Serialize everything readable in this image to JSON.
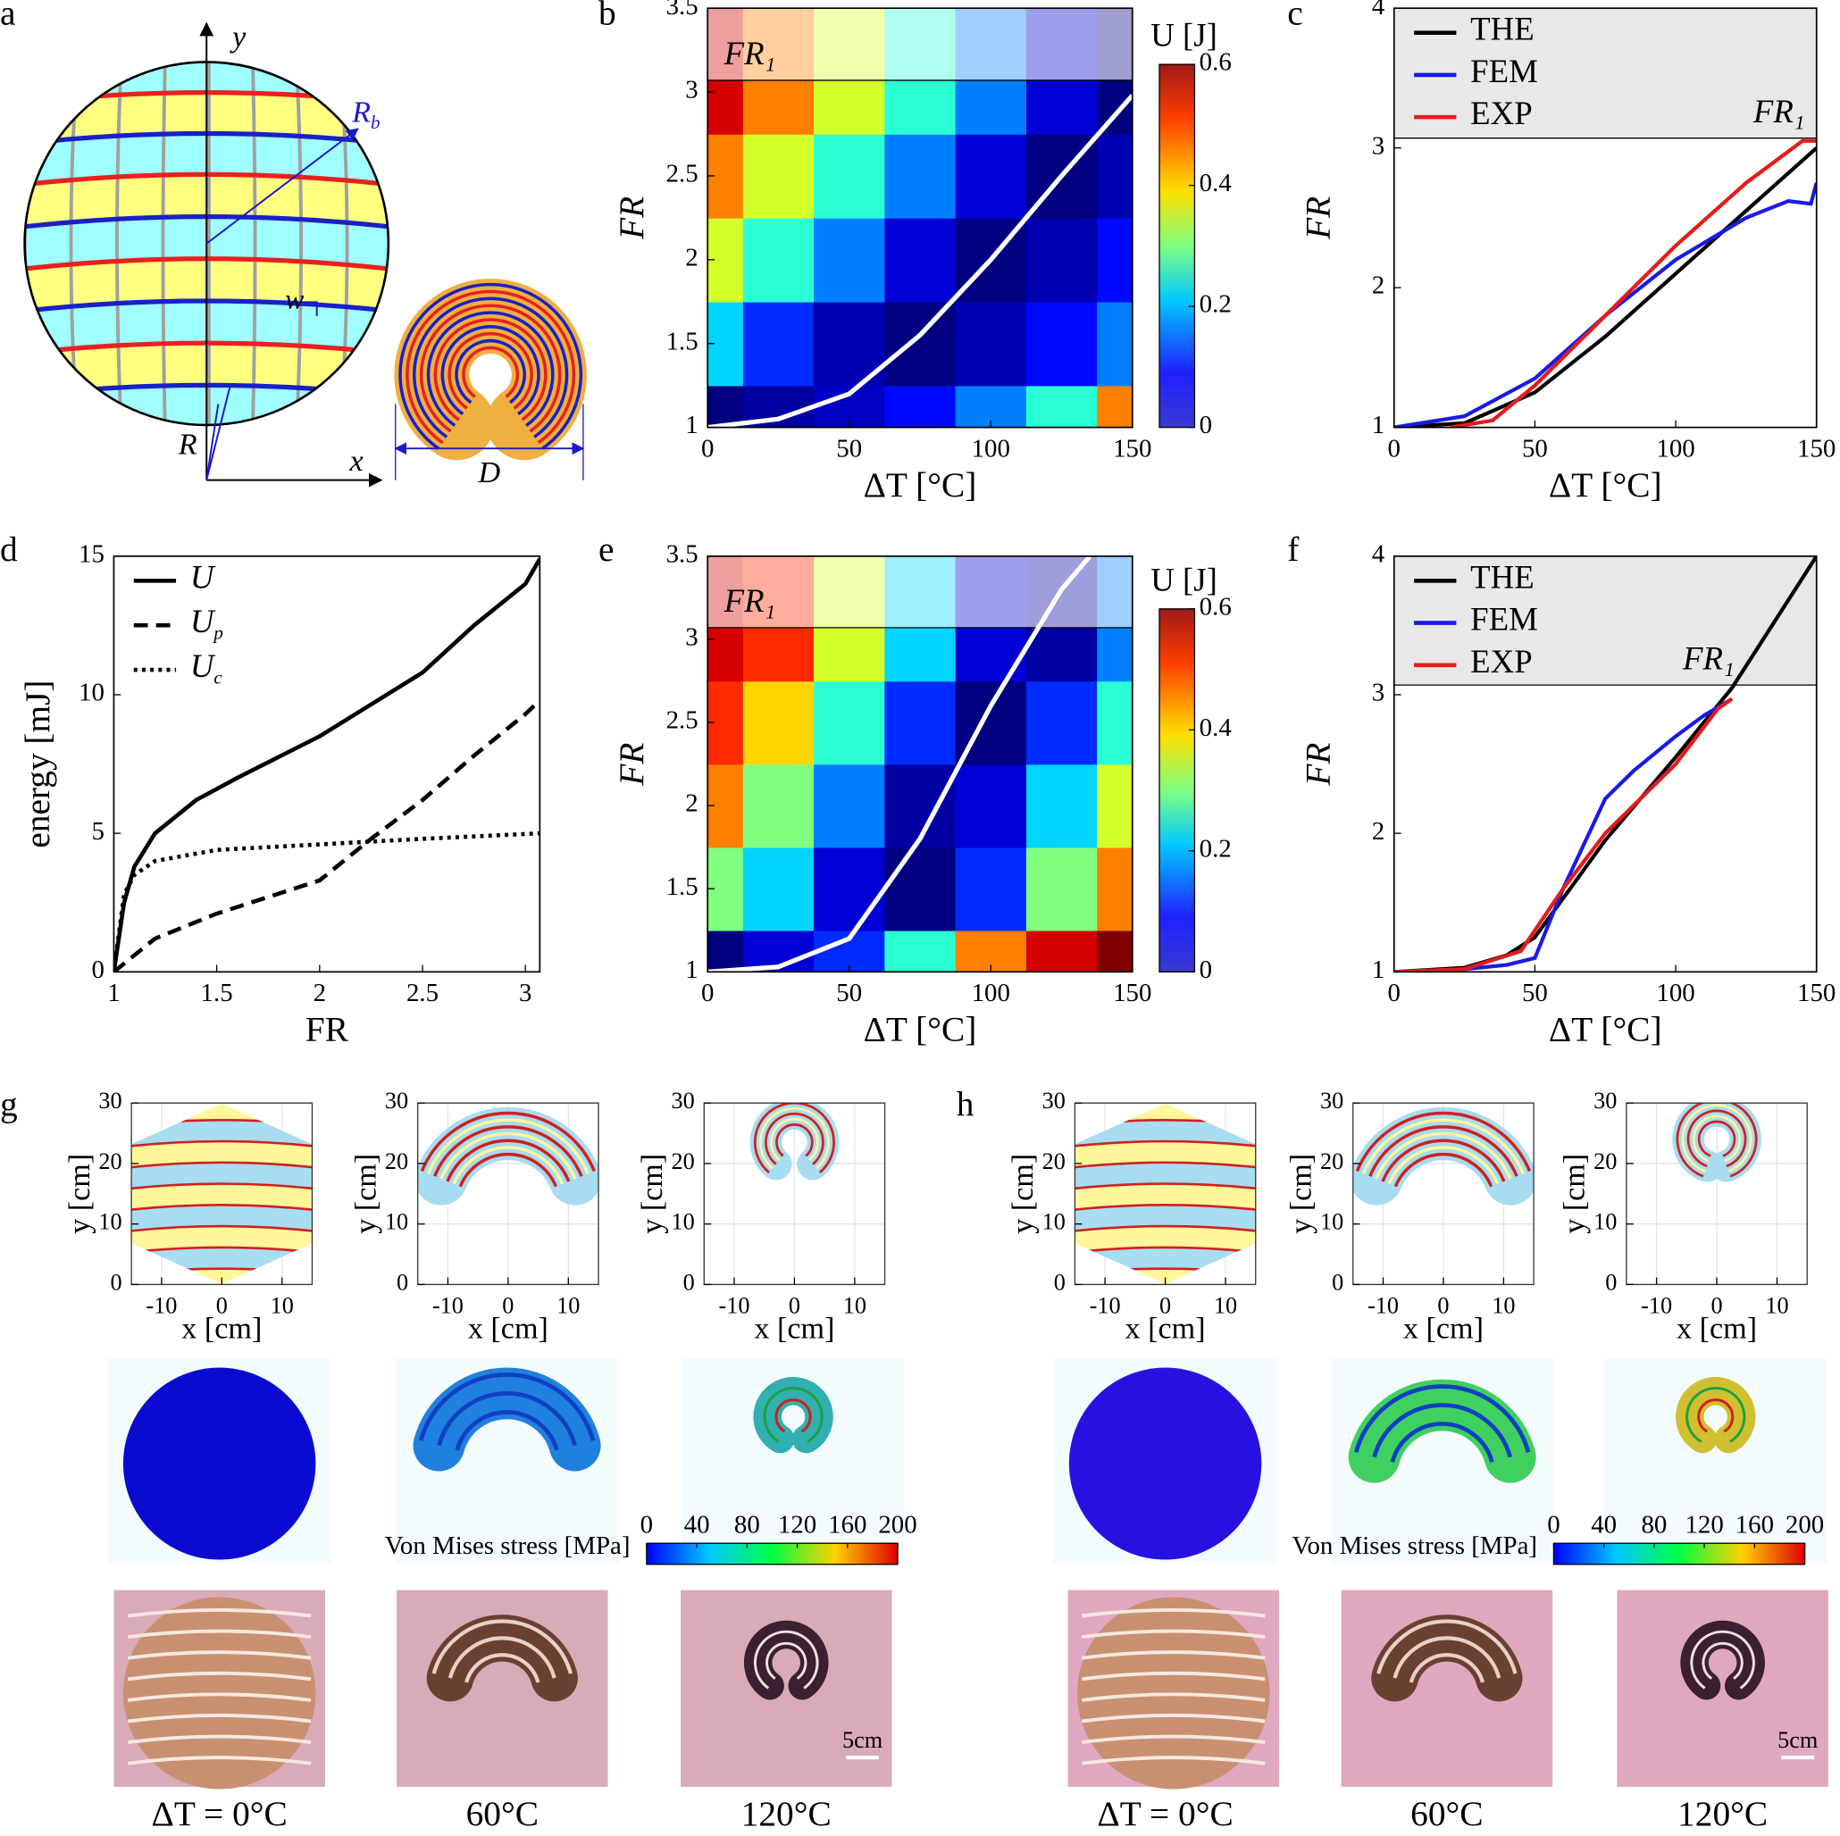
{
  "panel_labels": [
    "a",
    "b",
    "c",
    "d",
    "e",
    "f",
    "g",
    "h"
  ],
  "diagram": {
    "axis_y": "y",
    "axis_x": "x",
    "radius_b": {
      "text": "R",
      "subscript": "b"
    },
    "width": "w",
    "radius": "R",
    "diameter": "D"
  },
  "chart_data": [
    {
      "type": "heatmap",
      "xlabel": "ΔT [°C]",
      "ylabel": "FR",
      "xlim": [
        0,
        150
      ],
      "ylim": [
        1,
        3.5
      ],
      "xticks": [
        0,
        50,
        100,
        150
      ],
      "yticks": [
        1,
        1.5,
        2,
        2.5,
        3,
        3.5
      ],
      "x": [
        0,
        25,
        50,
        75,
        100,
        125,
        150
      ],
      "y": [
        1,
        1.5,
        2,
        2.5,
        3
      ],
      "z": [
        [
          0,
          0.02,
          0.04,
          0.08,
          0.15,
          0.25,
          0.45
        ],
        [
          0.2,
          0.1,
          0.03,
          0,
          0.03,
          0.08,
          0.15
        ],
        [
          0.35,
          0.25,
          0.15,
          0.05,
          0,
          0.03,
          0.08
        ],
        [
          0.45,
          0.35,
          0.25,
          0.15,
          0.05,
          0,
          0.03
        ],
        [
          0.55,
          0.45,
          0.35,
          0.25,
          0.15,
          0.05,
          0
        ]
      ],
      "curve": {
        "color": "#ffffff",
        "x": [
          0,
          25,
          50,
          75,
          100,
          125,
          150
        ],
        "y": [
          1,
          1.05,
          1.2,
          1.55,
          2,
          2.5,
          2.98
        ]
      },
      "threshold": {
        "value": 3.07,
        "label": "FR₁"
      },
      "colorbar": {
        "label": "U [J]",
        "lim": [
          0,
          0.6
        ],
        "ticks": [
          0,
          0.2,
          0.4,
          0.6
        ],
        "colormap": "jet"
      }
    },
    {
      "type": "line",
      "xlabel": "ΔT [°C]",
      "ylabel": "FR",
      "xlim": [
        0,
        150
      ],
      "ylim": [
        1,
        4
      ],
      "xticks": [
        0,
        50,
        100,
        150
      ],
      "yticks": [
        1,
        2,
        3,
        4
      ],
      "legend": "upper left",
      "threshold": {
        "value": 3.07,
        "label": "FR₁"
      },
      "series": [
        {
          "name": "THE",
          "color": "#000000",
          "x": [
            0,
            25,
            50,
            75,
            100,
            125,
            150
          ],
          "values": [
            1,
            1.03,
            1.25,
            1.65,
            2.1,
            2.55,
            3
          ]
        },
        {
          "name": "FEM",
          "color": "#1a1ae6",
          "x": [
            0,
            25,
            50,
            75,
            100,
            125,
            140,
            148,
            150
          ],
          "values": [
            1,
            1.08,
            1.35,
            1.8,
            2.2,
            2.5,
            2.62,
            2.6,
            2.75
          ]
        },
        {
          "name": "EXP",
          "color": "#e61a1a",
          "x": [
            20,
            35,
            50,
            75,
            100,
            125,
            145,
            150
          ],
          "values": [
            1,
            1.05,
            1.3,
            1.8,
            2.3,
            2.75,
            3.05,
            3.05
          ]
        }
      ]
    },
    {
      "type": "line",
      "xlabel": "FR",
      "ylabel": "energy  [mJ]",
      "xlim": [
        1,
        3.07
      ],
      "ylim": [
        0,
        15
      ],
      "xticks": [
        1,
        1.5,
        2,
        2.5,
        3
      ],
      "yticks": [
        0,
        5,
        10,
        15
      ],
      "legend": "upper left",
      "series": [
        {
          "name": "U",
          "color": "#000000",
          "dash": "solid",
          "x": [
            1,
            1.05,
            1.1,
            1.2,
            1.4,
            1.6,
            2,
            2.5,
            2.75,
            3,
            3.07
          ],
          "values": [
            0,
            2.5,
            3.8,
            5,
            6.2,
            7,
            8.5,
            10.8,
            12.5,
            14,
            14.9
          ]
        },
        {
          "name": "U",
          "subscript": "p",
          "color": "#000000",
          "dash": "dashed",
          "x": [
            1,
            1.2,
            1.5,
            2,
            2.25,
            2.5,
            2.75,
            3,
            3.07
          ],
          "values": [
            0,
            1.2,
            2.1,
            3.3,
            4.8,
            6.2,
            7.8,
            9.3,
            9.8
          ]
        },
        {
          "name": "U",
          "subscript": "c",
          "color": "#000000",
          "dash": "dotted",
          "x": [
            1,
            1.05,
            1.1,
            1.2,
            1.5,
            2,
            2.5,
            3.07
          ],
          "values": [
            0,
            2.8,
            3.5,
            4,
            4.4,
            4.6,
            4.8,
            5
          ]
        }
      ]
    },
    {
      "type": "heatmap",
      "xlabel": "ΔT [°C]",
      "ylabel": "FR",
      "xlim": [
        0,
        150
      ],
      "ylim": [
        1,
        3.5
      ],
      "xticks": [
        0,
        50,
        100,
        150
      ],
      "yticks": [
        1,
        1.5,
        2,
        2.5,
        3,
        3.5
      ],
      "x": [
        0,
        25,
        50,
        75,
        100,
        125,
        150
      ],
      "y": [
        1,
        1.5,
        2,
        2.5,
        3
      ],
      "z": [
        [
          0,
          0.05,
          0.1,
          0.25,
          0.45,
          0.55,
          0.6
        ],
        [
          0.3,
          0.2,
          0.05,
          0,
          0.1,
          0.3,
          0.45
        ],
        [
          0.45,
          0.3,
          0.15,
          0.02,
          0.05,
          0.2,
          0.35
        ],
        [
          0.5,
          0.4,
          0.25,
          0.1,
          0,
          0.1,
          0.25
        ],
        [
          0.55,
          0.5,
          0.35,
          0.2,
          0.05,
          0.02,
          0.15
        ]
      ],
      "curve": {
        "color": "#ffffff",
        "x": [
          0,
          25,
          50,
          75,
          100,
          125,
          135
        ],
        "y": [
          1,
          1.03,
          1.2,
          1.8,
          2.6,
          3.3,
          3.5
        ]
      },
      "threshold": {
        "value": 3.07,
        "label": "FR₁"
      },
      "colorbar": {
        "label": "U [J]",
        "lim": [
          0,
          0.6
        ],
        "ticks": [
          0,
          0.2,
          0.4,
          0.6
        ],
        "colormap": "jet"
      }
    },
    {
      "type": "line",
      "xlabel": "ΔT [°C]",
      "ylabel": "FR",
      "xlim": [
        0,
        150
      ],
      "ylim": [
        1,
        4
      ],
      "xticks": [
        0,
        50,
        100,
        150
      ],
      "yticks": [
        1,
        2,
        3,
        4
      ],
      "legend": "upper left",
      "threshold": {
        "value": 3.07,
        "label": "FR₁"
      },
      "series": [
        {
          "name": "THE",
          "color": "#000000",
          "x": [
            0,
            25,
            40,
            50,
            75,
            100,
            120,
            150
          ],
          "values": [
            1,
            1.03,
            1.12,
            1.25,
            1.95,
            2.55,
            3.05,
            4
          ]
        },
        {
          "name": "FEM",
          "color": "#1a1ae6",
          "x": [
            0,
            25,
            40,
            50,
            60,
            75,
            85,
            100,
            110,
            120
          ],
          "values": [
            1,
            1.02,
            1.05,
            1.1,
            1.6,
            2.25,
            2.45,
            2.7,
            2.85,
            2.97
          ]
        },
        {
          "name": "EXP",
          "color": "#e61a1a",
          "x": [
            0,
            25,
            45,
            60,
            75,
            100,
            115,
            120
          ],
          "values": [
            1,
            1.02,
            1.15,
            1.6,
            2,
            2.5,
            2.9,
            2.97
          ]
        }
      ]
    },
    {
      "type": "shape",
      "shape": "disk",
      "xlabel": "x [cm]",
      "ylabel": "y [cm]",
      "xlim": [
        -15,
        15
      ],
      "ylim": [
        0,
        30
      ],
      "xticks": [
        -10,
        0,
        10
      ],
      "yticks": [
        0,
        10,
        20,
        30
      ],
      "grid": true
    },
    {
      "type": "shape",
      "shape": "arch",
      "xlabel": "x [cm]",
      "ylabel": "y [cm]",
      "xlim": [
        -15,
        15
      ],
      "ylim": [
        0,
        30
      ],
      "xticks": [
        -10,
        0,
        10
      ],
      "yticks": [
        0,
        10,
        20,
        30
      ],
      "grid": true
    },
    {
      "type": "shape",
      "shape": "ring",
      "xlabel": "x [cm]",
      "ylabel": "y [cm]",
      "xlim": [
        -15,
        15
      ],
      "ylim": [
        0,
        30
      ],
      "xticks": [
        -10,
        0,
        10
      ],
      "yticks": [
        0,
        10,
        20,
        30
      ],
      "grid": true
    },
    {
      "type": "shape",
      "shape": "disk",
      "xlabel": "x [cm]",
      "ylabel": "y [cm]",
      "xlim": [
        -15,
        15
      ],
      "ylim": [
        0,
        30
      ],
      "xticks": [
        -10,
        0,
        10
      ],
      "yticks": [
        0,
        10,
        20,
        30
      ],
      "grid": true
    },
    {
      "type": "shape",
      "shape": "arch",
      "xlabel": "x [cm]",
      "ylabel": "y [cm]",
      "xlim": [
        -15,
        15
      ],
      "ylim": [
        0,
        30
      ],
      "xticks": [
        -10,
        0,
        10
      ],
      "yticks": [
        0,
        10,
        20,
        30
      ],
      "grid": true
    },
    {
      "type": "shape",
      "shape": "ring",
      "xlabel": "x [cm]",
      "ylabel": "y [cm]",
      "xlim": [
        -15,
        15
      ],
      "ylim": [
        0,
        30
      ],
      "xticks": [
        -10,
        0,
        10
      ],
      "yticks": [
        0,
        10,
        20,
        30
      ],
      "grid": true
    }
  ],
  "stress_colorbars": [
    {
      "label": "Von Mises stress [MPa]",
      "lim": [
        0,
        200
      ],
      "ticks": [
        0,
        40,
        80,
        120,
        160,
        200
      ]
    },
    {
      "label": "Von Mises stress [MPa]",
      "lim": [
        0,
        200
      ],
      "ticks": [
        0,
        40,
        80,
        120,
        160,
        200
      ]
    }
  ],
  "captions": [
    [
      "ΔT = 0°C",
      "60°C",
      "120°C"
    ],
    [
      "ΔT = 0°C",
      "60°C",
      "120°C"
    ]
  ],
  "scale_bars": [
    "5cm",
    "5cm"
  ]
}
